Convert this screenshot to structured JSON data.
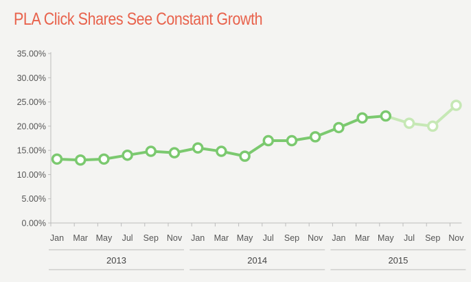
{
  "chart_data": {
    "type": "line",
    "title": "PLA Click Shares See Constant Growth",
    "xlabel": "",
    "ylabel": "",
    "ylim": [
      0,
      35
    ],
    "yticks": [
      "0.00%",
      "5.00%",
      "10.00%",
      "15.00%",
      "20.00%",
      "25.00%",
      "30.00%",
      "35.00%"
    ],
    "categories": [
      "Jan",
      "Mar",
      "May",
      "Jul",
      "Sep",
      "Nov",
      "Jan",
      "Mar",
      "May",
      "Jul",
      "Sep",
      "Nov",
      "Jan",
      "Mar",
      "May",
      "Jul",
      "Sep",
      "Nov"
    ],
    "year_groups": [
      {
        "label": "2013",
        "months": 6
      },
      {
        "label": "2014",
        "months": 6
      },
      {
        "label": "2015",
        "months": 6
      }
    ],
    "values": [
      13.2,
      13.0,
      13.2,
      14.0,
      14.8,
      14.5,
      15.5,
      14.8,
      13.8,
      17.0,
      17.0,
      17.8,
      19.7,
      21.7,
      22.1,
      20.6,
      20.0,
      24.3
    ],
    "actual_count": 15,
    "grid": false,
    "colors": {
      "actual": "#7bc96f",
      "projected": "#c6e8b5",
      "marker_fill": "#ffffff",
      "axis": "#bbbbbb",
      "title": "#e8624c"
    }
  }
}
